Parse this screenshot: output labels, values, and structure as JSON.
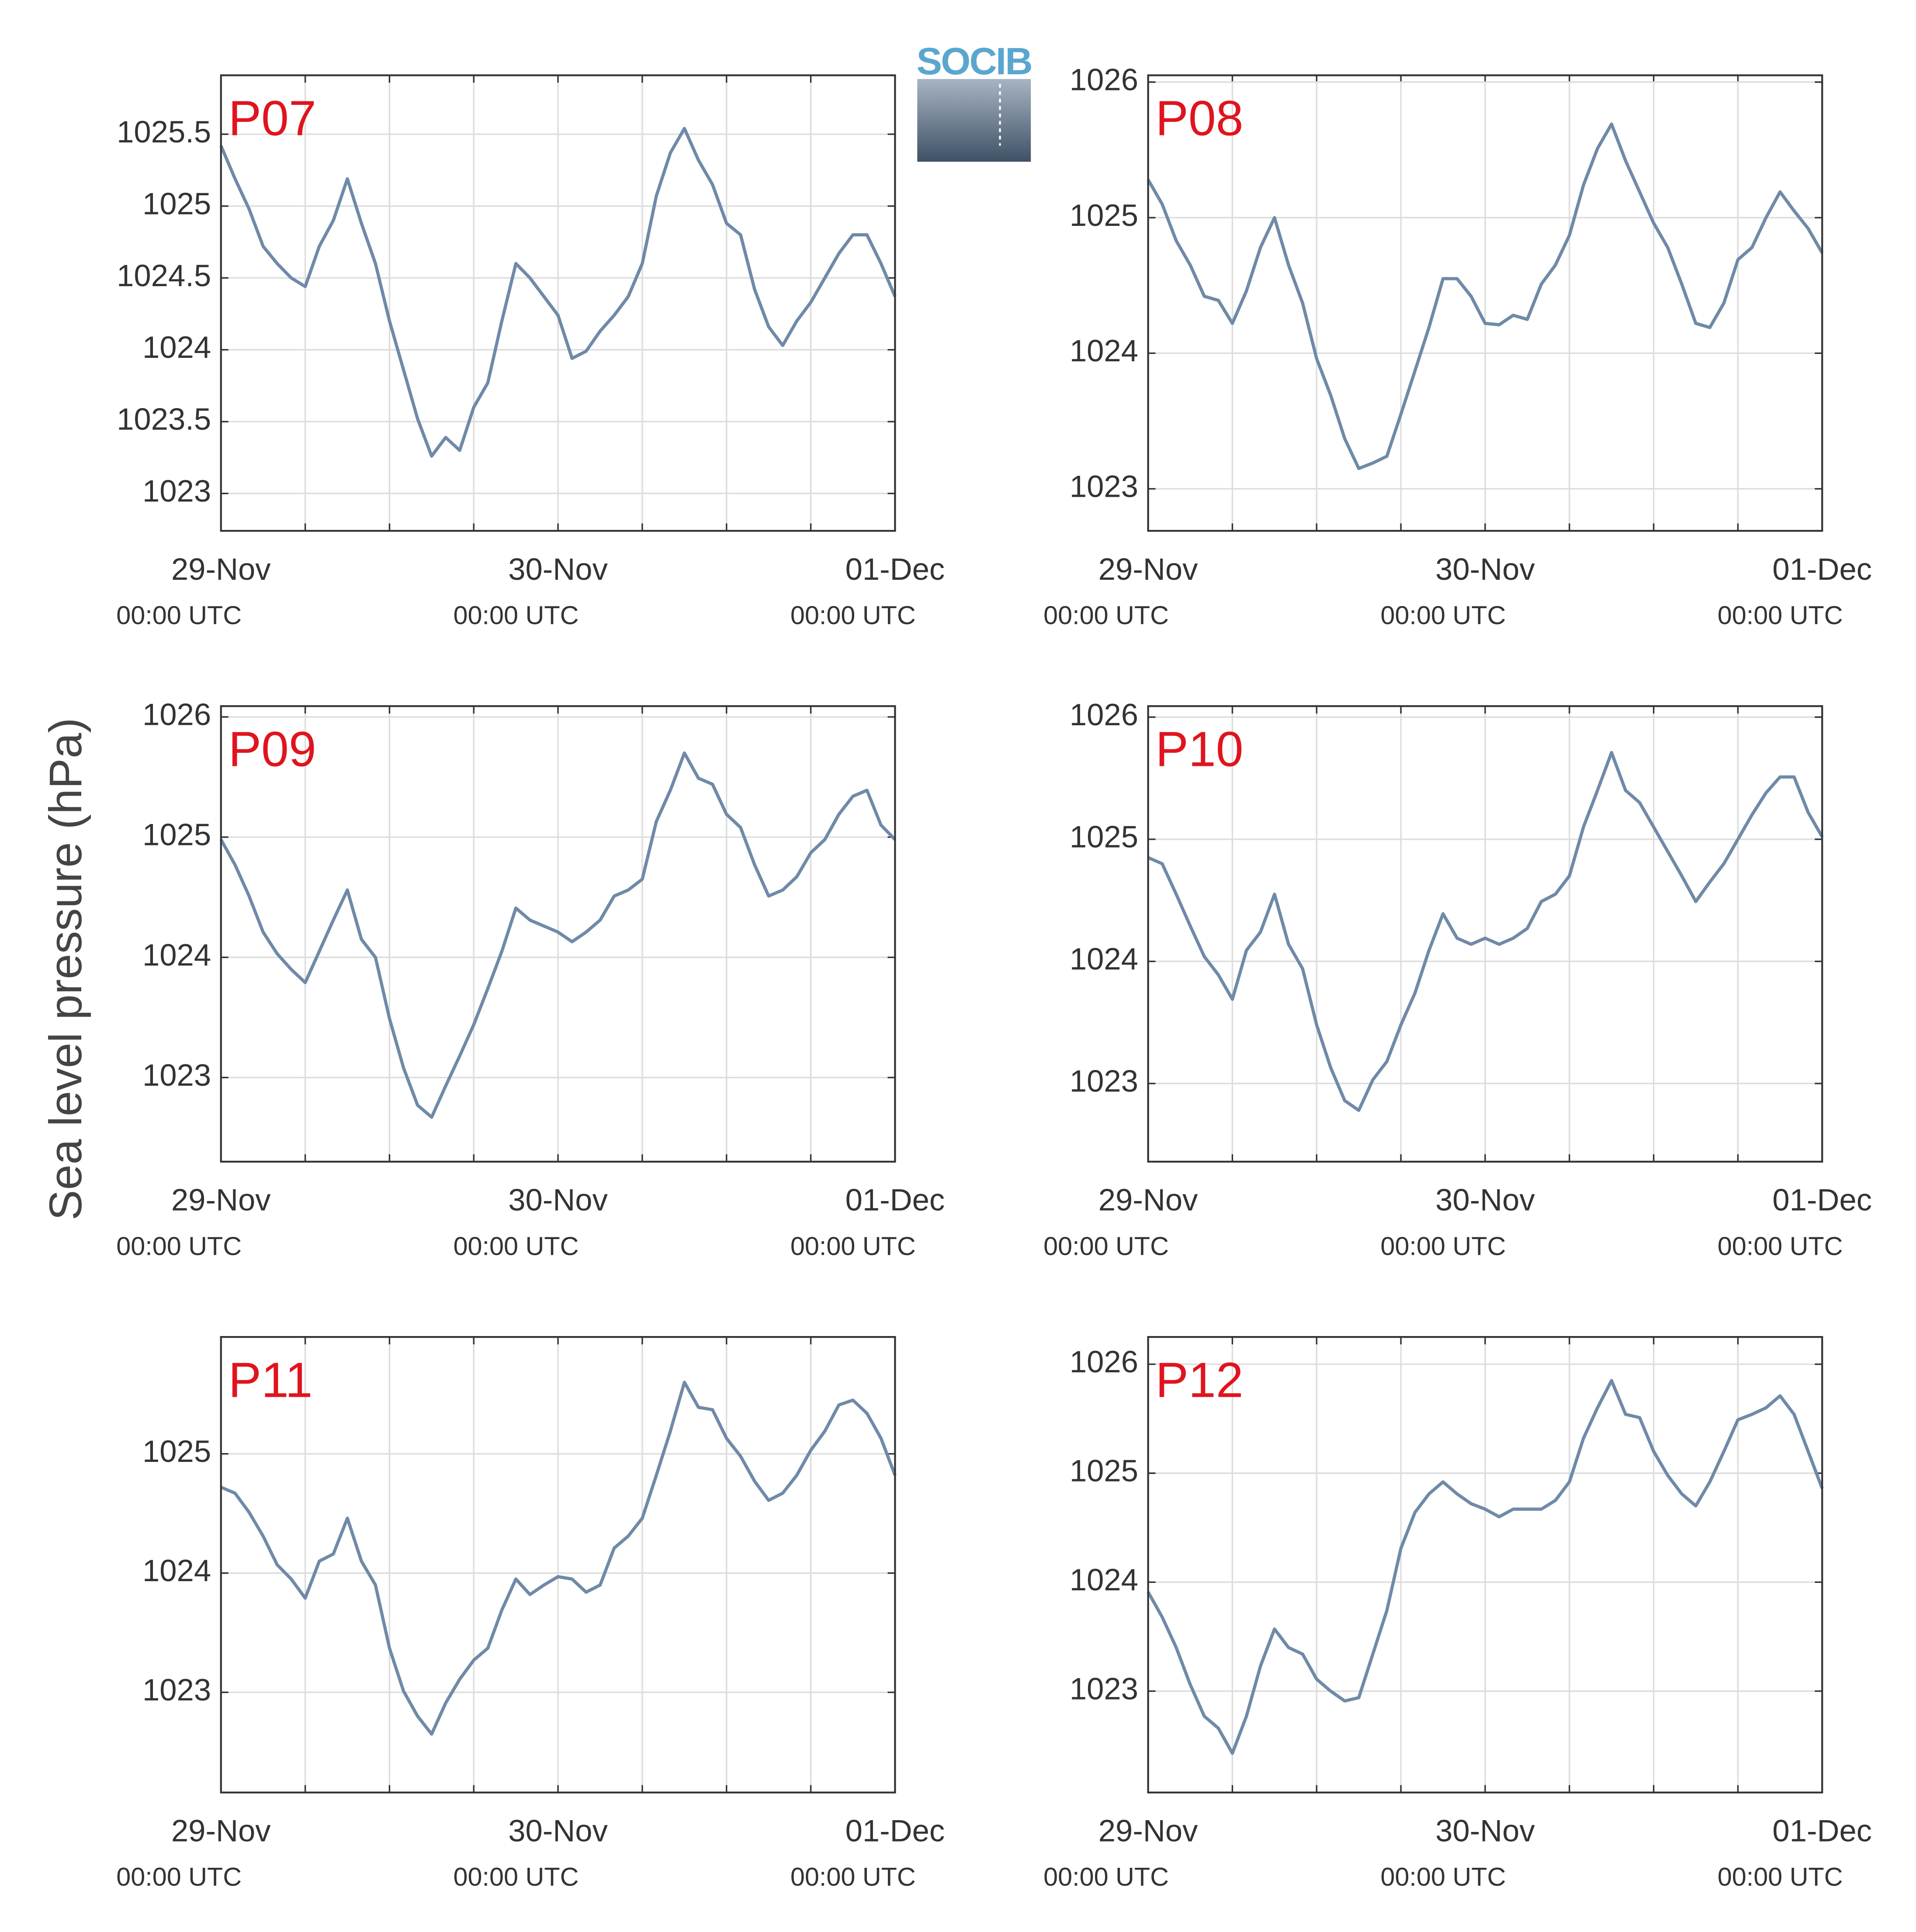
{
  "ylabel": "Sea level pressure (hPa)",
  "logo": "SOCIB",
  "chart_data": [
    {
      "type": "line",
      "title": "P07",
      "color": "#6f8aa8",
      "x": [
        0,
        1,
        2,
        3,
        4,
        5,
        6,
        7,
        8,
        9,
        10,
        11,
        12,
        13,
        14,
        15,
        16,
        17,
        18,
        19,
        20,
        21,
        22,
        23,
        24,
        25,
        26,
        27,
        28,
        29,
        30,
        31,
        32,
        33,
        34,
        35,
        36,
        37,
        38,
        39,
        40,
        41,
        42,
        43,
        44,
        45,
        46,
        47,
        48
      ],
      "values": [
        1025.42,
        1025.19,
        1024.98,
        1024.72,
        1024.6,
        1024.5,
        1024.44,
        1024.72,
        1024.9,
        1025.19,
        1024.88,
        1024.6,
        1024.2,
        1023.86,
        1023.52,
        1023.26,
        1023.39,
        1023.3,
        1023.6,
        1023.77,
        1024.2,
        1024.6,
        1024.5,
        1024.37,
        1024.24,
        1023.94,
        1023.99,
        1024.13,
        1024.24,
        1024.37,
        1024.6,
        1025.07,
        1025.37,
        1025.54,
        1025.32,
        1025.15,
        1024.88,
        1024.8,
        1024.42,
        1024.16,
        1024.03,
        1024.2,
        1024.33,
        1024.5,
        1024.67,
        1024.8,
        1024.8,
        1024.6,
        1024.37
      ],
      "xlim": [
        0,
        48
      ],
      "xgrid": [
        0,
        6,
        12,
        18,
        24,
        30,
        36,
        42,
        48
      ],
      "xticks": [
        {
          "value": 0,
          "label": "29-Nov",
          "sublabel": "00:00 UTC"
        },
        {
          "value": 24,
          "label": "30-Nov",
          "sublabel": "00:00 UTC"
        },
        {
          "value": 48,
          "label": "01-Dec",
          "sublabel": "00:00 UTC"
        }
      ],
      "ylim": [
        1022.74,
        1025.91
      ],
      "yticks": [
        1023,
        1023.5,
        1024,
        1024.5,
        1025,
        1025.5
      ],
      "grid": true
    },
    {
      "type": "line",
      "title": "P08",
      "color": "#6f8aa8",
      "x": [
        0,
        1,
        2,
        3,
        4,
        5,
        6,
        7,
        8,
        9,
        10,
        11,
        12,
        13,
        14,
        15,
        16,
        17,
        18,
        19,
        20,
        21,
        22,
        23,
        24,
        25,
        26,
        27,
        28,
        29,
        30,
        31,
        32,
        33,
        34,
        35,
        36,
        37,
        38,
        39,
        40,
        41,
        42,
        43,
        44,
        45,
        46,
        47,
        48
      ],
      "values": [
        1025.28,
        1025.1,
        1024.83,
        1024.65,
        1024.42,
        1024.39,
        1024.22,
        1024.46,
        1024.78,
        1025.0,
        1024.65,
        1024.37,
        1023.96,
        1023.69,
        1023.37,
        1023.15,
        1023.19,
        1023.24,
        1023.55,
        1023.87,
        1024.19,
        1024.55,
        1024.55,
        1024.42,
        1024.22,
        1024.21,
        1024.28,
        1024.25,
        1024.51,
        1024.65,
        1024.87,
        1025.24,
        1025.51,
        1025.69,
        1025.42,
        1025.19,
        1024.96,
        1024.78,
        1024.51,
        1024.22,
        1024.19,
        1024.37,
        1024.69,
        1024.78,
        1025.0,
        1025.19,
        1025.05,
        1024.92,
        1024.74
      ],
      "xlim": [
        0,
        48
      ],
      "xgrid": [
        0,
        6,
        12,
        18,
        24,
        30,
        36,
        42,
        48
      ],
      "xticks": [
        {
          "value": 0,
          "label": "29-Nov",
          "sublabel": "00:00 UTC"
        },
        {
          "value": 24,
          "label": "30-Nov",
          "sublabel": "00:00 UTC"
        },
        {
          "value": 48,
          "label": "01-Dec",
          "sublabel": "00:00 UTC"
        }
      ],
      "ylim": [
        1022.69,
        1026.05
      ],
      "yticks": [
        1023,
        1024,
        1025,
        1026
      ],
      "grid": true
    },
    {
      "type": "line",
      "title": "P09",
      "color": "#6f8aa8",
      "x": [
        0,
        1,
        2,
        3,
        4,
        5,
        6,
        7,
        8,
        9,
        10,
        11,
        12,
        13,
        14,
        15,
        16,
        17,
        18,
        19,
        20,
        21,
        22,
        23,
        24,
        25,
        26,
        27,
        28,
        29,
        30,
        31,
        32,
        33,
        34,
        35,
        36,
        37,
        38,
        39,
        40,
        41,
        42,
        43,
        44,
        45,
        46,
        47,
        48
      ],
      "values": [
        1024.98,
        1024.77,
        1024.51,
        1024.21,
        1024.03,
        1023.9,
        1023.79,
        1024.05,
        1024.31,
        1024.56,
        1024.15,
        1024.0,
        1023.49,
        1023.08,
        1022.77,
        1022.67,
        1022.93,
        1023.18,
        1023.44,
        1023.74,
        1024.05,
        1024.41,
        1024.31,
        1024.26,
        1024.21,
        1024.13,
        1024.21,
        1024.31,
        1024.51,
        1024.56,
        1024.65,
        1025.13,
        1025.39,
        1025.7,
        1025.49,
        1025.44,
        1025.19,
        1025.08,
        1024.77,
        1024.51,
        1024.56,
        1024.67,
        1024.87,
        1024.98,
        1025.19,
        1025.34,
        1025.39,
        1025.1,
        1024.98
      ],
      "xlim": [
        0,
        48
      ],
      "xgrid": [
        0,
        6,
        12,
        18,
        24,
        30,
        36,
        42,
        48
      ],
      "xticks": [
        {
          "value": 0,
          "label": "29-Nov",
          "sublabel": "00:00 UTC"
        },
        {
          "value": 24,
          "label": "30-Nov",
          "sublabel": "00:00 UTC"
        },
        {
          "value": 48,
          "label": "01-Dec",
          "sublabel": "00:00 UTC"
        }
      ],
      "ylim": [
        1022.3,
        1026.09
      ],
      "yticks": [
        1023,
        1024,
        1025,
        1026
      ],
      "grid": true
    },
    {
      "type": "line",
      "title": "P10",
      "color": "#6f8aa8",
      "x": [
        0,
        1,
        2,
        3,
        4,
        5,
        6,
        7,
        8,
        9,
        10,
        11,
        12,
        13,
        14,
        15,
        16,
        17,
        18,
        19,
        20,
        21,
        22,
        23,
        24,
        25,
        26,
        27,
        28,
        29,
        30,
        31,
        32,
        33,
        34,
        35,
        36,
        37,
        38,
        39,
        40,
        41,
        42,
        43,
        44,
        45,
        46,
        47,
        48
      ],
      "values": [
        1024.85,
        1024.8,
        1024.55,
        1024.29,
        1024.04,
        1023.89,
        1023.69,
        1024.09,
        1024.24,
        1024.55,
        1024.14,
        1023.94,
        1023.48,
        1023.13,
        1022.86,
        1022.78,
        1023.03,
        1023.18,
        1023.48,
        1023.74,
        1024.09,
        1024.39,
        1024.19,
        1024.14,
        1024.19,
        1024.14,
        1024.19,
        1024.27,
        1024.49,
        1024.55,
        1024.7,
        1025.1,
        1025.4,
        1025.71,
        1025.4,
        1025.3,
        1025.1,
        1024.9,
        1024.7,
        1024.49,
        1024.65,
        1024.8,
        1025.0,
        1025.2,
        1025.38,
        1025.51,
        1025.51,
        1025.22,
        1025.02
      ],
      "xlim": [
        0,
        48
      ],
      "xgrid": [
        0,
        6,
        12,
        18,
        24,
        30,
        36,
        42,
        48
      ],
      "xticks": [
        {
          "value": 0,
          "label": "29-Nov",
          "sublabel": "00:00 UTC"
        },
        {
          "value": 24,
          "label": "30-Nov",
          "sublabel": "00:00 UTC"
        },
        {
          "value": 48,
          "label": "01-Dec",
          "sublabel": "00:00 UTC"
        }
      ],
      "ylim": [
        1022.36,
        1026.09
      ],
      "yticks": [
        1023,
        1024,
        1025,
        1026
      ],
      "grid": true
    },
    {
      "type": "line",
      "title": "P11",
      "color": "#6f8aa8",
      "x": [
        0,
        1,
        2,
        3,
        4,
        5,
        6,
        7,
        8,
        9,
        10,
        11,
        12,
        13,
        14,
        15,
        16,
        17,
        18,
        19,
        20,
        21,
        22,
        23,
        24,
        25,
        26,
        27,
        28,
        29,
        30,
        31,
        32,
        33,
        34,
        35,
        36,
        37,
        38,
        39,
        40,
        41,
        42,
        43,
        44,
        45,
        46,
        47,
        48
      ],
      "values": [
        1024.72,
        1024.67,
        1024.51,
        1024.31,
        1024.07,
        1023.95,
        1023.79,
        1024.1,
        1024.16,
        1024.46,
        1024.1,
        1023.9,
        1023.37,
        1023.01,
        1022.8,
        1022.65,
        1022.91,
        1023.11,
        1023.27,
        1023.37,
        1023.69,
        1023.95,
        1023.82,
        1023.9,
        1023.97,
        1023.95,
        1023.84,
        1023.9,
        1024.21,
        1024.31,
        1024.46,
        1024.82,
        1025.19,
        1025.6,
        1025.39,
        1025.37,
        1025.13,
        1024.98,
        1024.77,
        1024.61,
        1024.67,
        1024.82,
        1025.03,
        1025.19,
        1025.41,
        1025.45,
        1025.34,
        1025.13,
        1024.82
      ],
      "xlim": [
        0,
        48
      ],
      "xgrid": [
        0,
        6,
        12,
        18,
        24,
        30,
        36,
        42,
        48
      ],
      "xticks": [
        {
          "value": 0,
          "label": "29-Nov",
          "sublabel": "00:00 UTC"
        },
        {
          "value": 24,
          "label": "30-Nov",
          "sublabel": "00:00 UTC"
        },
        {
          "value": 48,
          "label": "01-Dec",
          "sublabel": "00:00 UTC"
        }
      ],
      "ylim": [
        1022.16,
        1025.98
      ],
      "yticks": [
        1023,
        1024,
        1025
      ],
      "grid": true
    },
    {
      "type": "line",
      "title": "P12",
      "color": "#6f8aa8",
      "x": [
        0,
        1,
        2,
        3,
        4,
        5,
        6,
        7,
        8,
        9,
        10,
        11,
        12,
        13,
        14,
        15,
        16,
        17,
        18,
        19,
        20,
        21,
        22,
        23,
        24,
        25,
        26,
        27,
        28,
        29,
        30,
        31,
        32,
        33,
        34,
        35,
        36,
        37,
        38,
        39,
        40,
        41,
        42,
        43,
        44,
        45,
        46,
        47,
        48
      ],
      "values": [
        1023.91,
        1023.68,
        1023.4,
        1023.06,
        1022.77,
        1022.66,
        1022.43,
        1022.77,
        1023.23,
        1023.57,
        1023.4,
        1023.34,
        1023.11,
        1023.0,
        1022.91,
        1022.94,
        1023.34,
        1023.74,
        1024.31,
        1024.64,
        1024.81,
        1024.92,
        1024.81,
        1024.72,
        1024.67,
        1024.6,
        1024.67,
        1024.67,
        1024.67,
        1024.75,
        1024.92,
        1025.32,
        1025.6,
        1025.85,
        1025.54,
        1025.51,
        1025.2,
        1024.98,
        1024.81,
        1024.7,
        1024.92,
        1025.2,
        1025.49,
        1025.54,
        1025.6,
        1025.71,
        1025.54,
        1025.2,
        1024.86
      ],
      "xlim": [
        0,
        48
      ],
      "xgrid": [
        0,
        6,
        12,
        18,
        24,
        30,
        36,
        42,
        48
      ],
      "xticks": [
        {
          "value": 0,
          "label": "29-Nov",
          "sublabel": "00:00 UTC"
        },
        {
          "value": 24,
          "label": "30-Nov",
          "sublabel": "00:00 UTC"
        },
        {
          "value": 48,
          "label": "01-Dec",
          "sublabel": "00:00 UTC"
        }
      ],
      "ylim": [
        1022.07,
        1026.25
      ],
      "yticks": [
        1023,
        1024,
        1025,
        1026
      ],
      "grid": true
    }
  ]
}
